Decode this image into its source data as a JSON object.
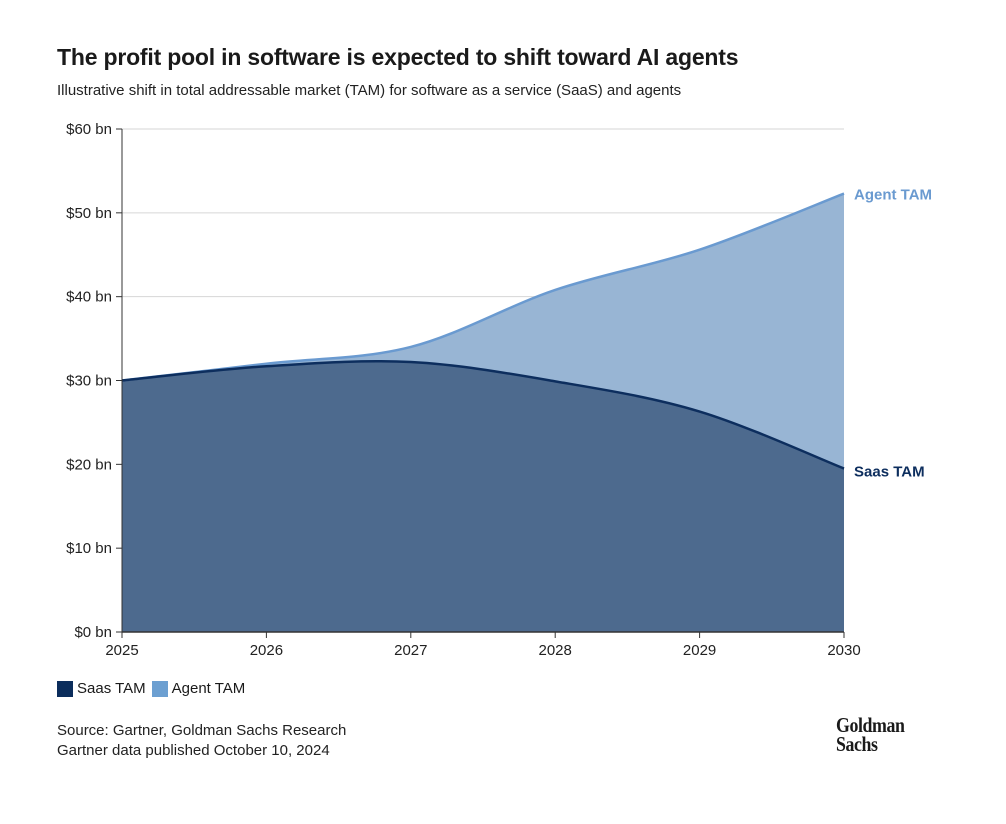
{
  "chart_data": {
    "type": "area",
    "title": "The profit pool in software is expected to shift toward AI agents",
    "subtitle": "Illustrative shift in total addressable market (TAM) for software as a service (SaaS) and agents",
    "x": [
      2025,
      2026,
      2027,
      2028,
      2029,
      2030
    ],
    "x_tick_labels": [
      "2025",
      "2026",
      "2027",
      "2028",
      "2029",
      "2030"
    ],
    "ylim": [
      0,
      60
    ],
    "y_ticks": [
      0,
      10,
      20,
      30,
      40,
      50,
      60
    ],
    "y_tick_labels": [
      "$0 bn",
      "$10 bn",
      "$20 bn",
      "$30 bn",
      "$40 bn",
      "$50 bn",
      "$60 bn"
    ],
    "grid": true,
    "series": [
      {
        "name": "Saas TAM",
        "values": [
          30,
          31.7,
          32.2,
          29.9,
          26.3,
          19.5
        ],
        "line_color": "#0d2e5e",
        "fill_color": "#4d6a8e"
      },
      {
        "name": "Agent TAM",
        "values": [
          30,
          32.0,
          34.0,
          40.8,
          45.6,
          52.3
        ],
        "line_color": "#6a9ad0",
        "fill_color": "#98b5d4"
      }
    ],
    "legend": {
      "placement": "bottom-left",
      "items": [
        {
          "label": "Saas TAM",
          "color": "#0b2d5c"
        },
        {
          "label": "Agent TAM",
          "color": "#6c9fd1"
        }
      ]
    },
    "end_labels": [
      "Agent TAM",
      "Saas TAM"
    ]
  },
  "footer": {
    "source": "Source: Gartner, Goldman Sachs Research",
    "note": "Gartner data published October 10, 2024",
    "logo_line1": "Goldman",
    "logo_line2": "Sachs"
  }
}
